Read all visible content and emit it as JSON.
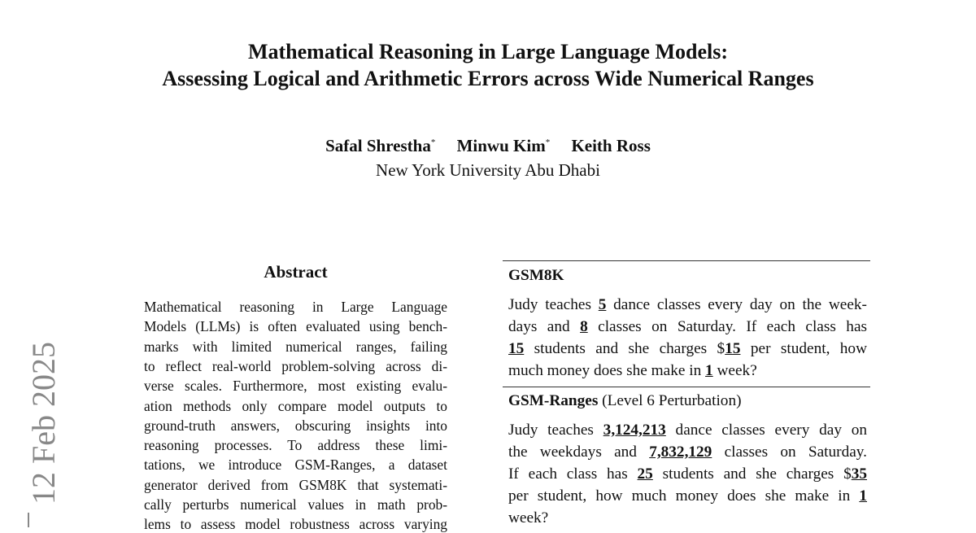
{
  "header": {
    "title_lines": [
      "Mathematical Reasoning in Large Language Models:",
      "Assessing Logical and Arithmetic Errors across Wide Numerical Ranges"
    ],
    "authors": [
      {
        "name": "Safal Shrestha",
        "mark": "*"
      },
      {
        "name": "Minwu Kim",
        "mark": "*"
      },
      {
        "name": "Keith Ross"
      }
    ],
    "affiliation": "New York University Abu Dhabi"
  },
  "side_stamp": "12 Feb 2025",
  "abstract": {
    "heading": "Abstract",
    "lines": [
      "Mathematical reasoning in Large Language",
      "Models (LLMs) is often evaluated using bench-",
      "marks with limited numerical ranges, failing",
      "to reflect real-world problem-solving across di-",
      "verse scales. Furthermore, most existing evalu-",
      "ation methods only compare model outputs to",
      "ground-truth answers, obscuring insights into",
      "reasoning processes.  To address these limi-",
      "tations, we introduce GSM-Ranges, a dataset",
      "generator derived from GSM8K that systemati-",
      "cally perturbs numerical values in math prob-",
      "lems to assess model robustness across varying"
    ]
  },
  "figure": {
    "gsm8k": {
      "title": "GSM8K",
      "lines": [
        [
          "Judy teaches ",
          "5",
          " dance classes every day on the week-"
        ],
        [
          "days and ",
          "8",
          " classes on Saturday.  If each class has"
        ],
        [
          "15",
          " students and she charges $",
          "15",
          " per student, how"
        ],
        [
          "much money does she make in ",
          "1",
          " week?"
        ]
      ]
    },
    "gsm_ranges": {
      "title": "GSM-Ranges",
      "subtitle": "(Level 6 Perturbation)",
      "lines": [
        [
          "Judy teaches ",
          "3,124,213",
          " dance classes every day on"
        ],
        [
          "the weekdays and ",
          "7,832,129",
          " classes on Saturday."
        ],
        [
          "If each class has ",
          "25",
          " students and she charges $",
          "35"
        ],
        [
          "per student, how much money does she make in ",
          "1"
        ],
        [
          "week?"
        ]
      ]
    }
  }
}
